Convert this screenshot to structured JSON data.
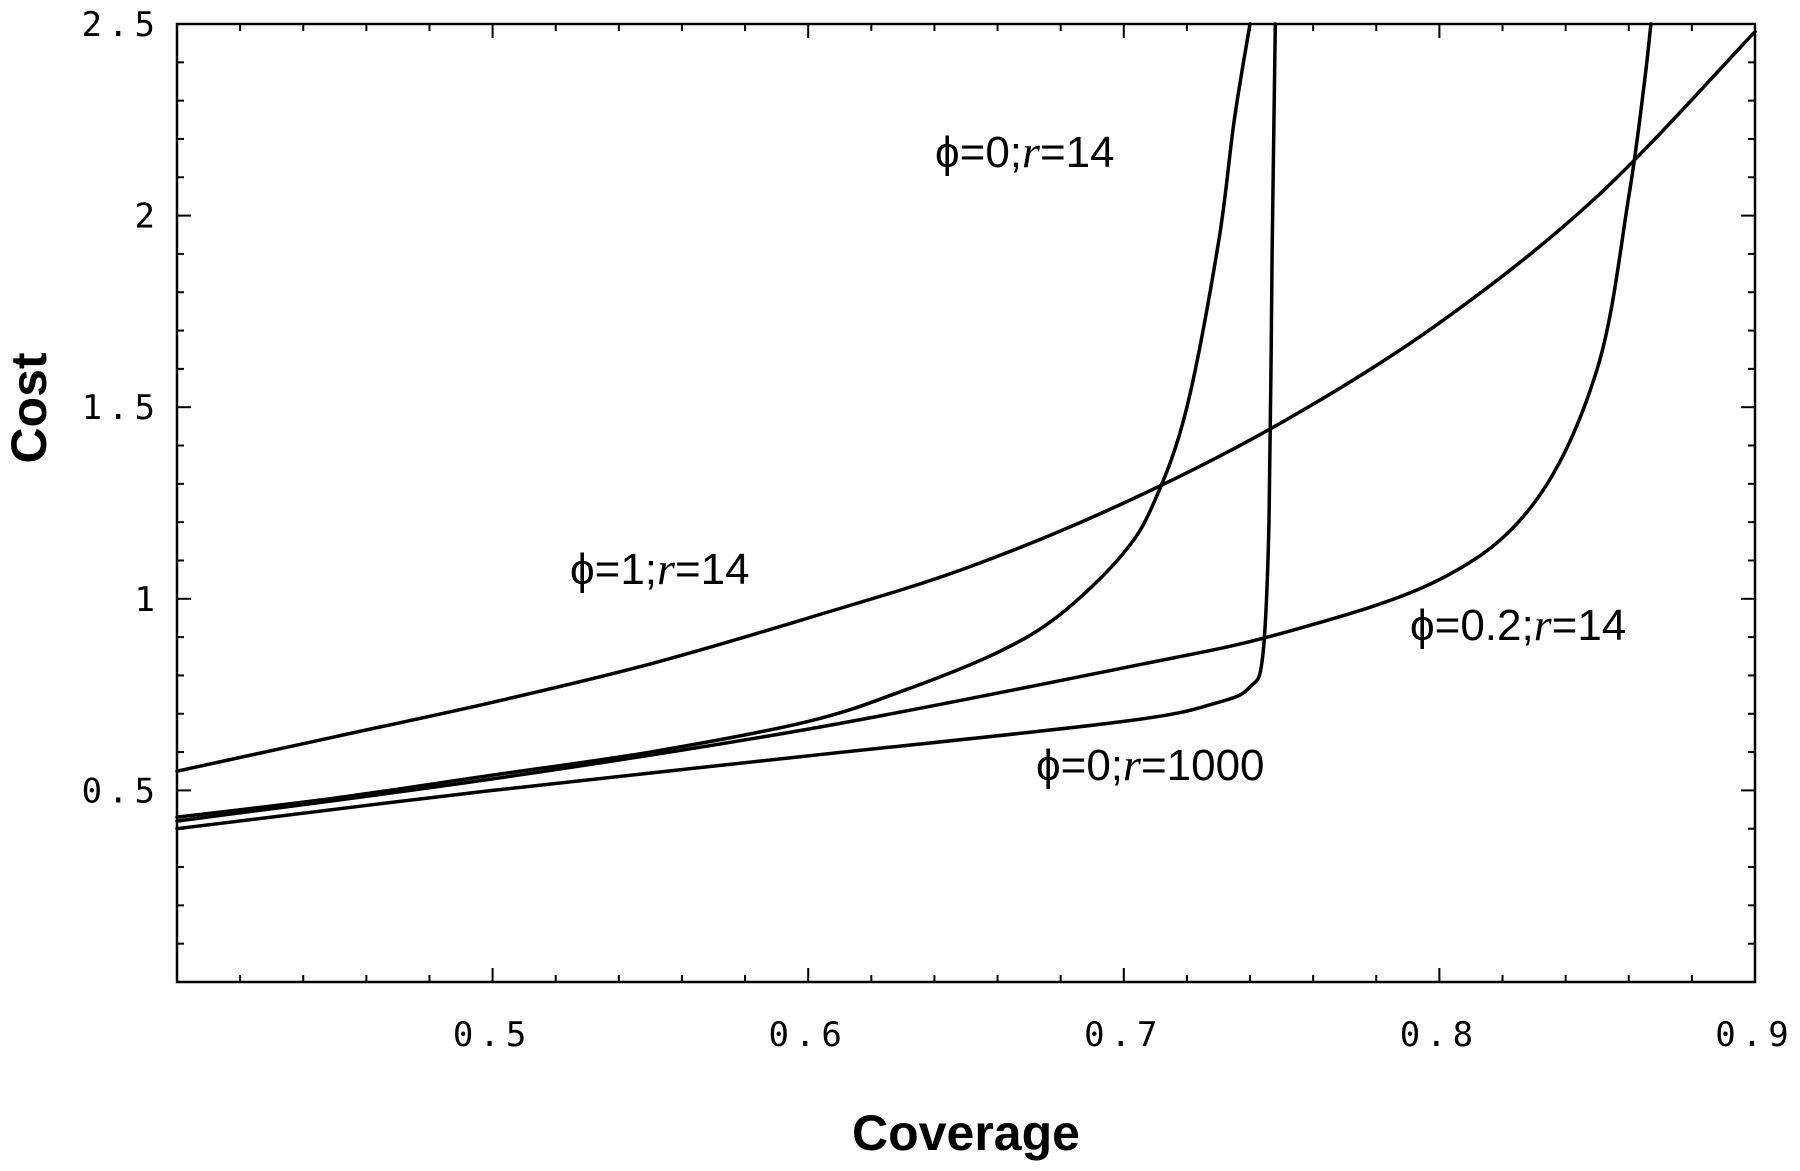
{
  "chart_data": {
    "type": "line",
    "title": "",
    "xlabel": "Coverage",
    "ylabel": "Cost",
    "xlim": [
      0.4,
      0.9
    ],
    "ylim": [
      0.0,
      2.5
    ],
    "grid": false,
    "legend": "none (labels placed next to curves)",
    "x_ticks": [
      0.5,
      0.6,
      0.7,
      0.8,
      0.9
    ],
    "x_tick_labels": [
      "0.5",
      "0.6",
      "0.7",
      "0.8",
      "0.9"
    ],
    "y_ticks": [
      0.5,
      1.0,
      1.5,
      2.0,
      2.5
    ],
    "y_tick_labels": [
      "0.5",
      "1",
      "1.5",
      "2",
      "2.5"
    ],
    "series": [
      {
        "name": "ϕ=1;r=14",
        "label_parts": [
          "ϕ=1;",
          "r",
          "=14"
        ],
        "x": [
          0.4,
          0.45,
          0.5,
          0.55,
          0.6,
          0.65,
          0.7,
          0.75,
          0.8,
          0.85,
          0.9
        ],
        "y": [
          0.55,
          0.64,
          0.73,
          0.83,
          0.95,
          1.08,
          1.25,
          1.46,
          1.72,
          2.05,
          2.48
        ]
      },
      {
        "name": "ϕ=0;r=14",
        "label_parts": [
          "ϕ=0;",
          "r",
          "=14"
        ],
        "x": [
          0.4,
          0.45,
          0.5,
          0.55,
          0.6,
          0.63,
          0.66,
          0.68,
          0.7,
          0.71,
          0.72,
          0.73,
          0.735,
          0.74
        ],
        "y": [
          0.43,
          0.48,
          0.54,
          0.6,
          0.68,
          0.76,
          0.86,
          0.96,
          1.12,
          1.26,
          1.5,
          1.93,
          2.25,
          2.5
        ]
      },
      {
        "name": "ϕ=0;r=1000",
        "label_parts": [
          "ϕ=0;",
          "r",
          "=1000"
        ],
        "x": [
          0.4,
          0.5,
          0.6,
          0.7,
          0.73,
          0.74,
          0.744,
          0.746,
          0.747,
          0.748
        ],
        "y": [
          0.4,
          0.5,
          0.59,
          0.68,
          0.73,
          0.77,
          0.85,
          1.2,
          1.9,
          2.5
        ]
      },
      {
        "name": "ϕ=0.2;r=14",
        "label_parts": [
          "ϕ=0.2;",
          "r",
          "=14"
        ],
        "x": [
          0.4,
          0.5,
          0.6,
          0.7,
          0.75,
          0.8,
          0.83,
          0.85,
          0.86,
          0.865,
          0.867
        ],
        "y": [
          0.42,
          0.53,
          0.66,
          0.82,
          0.91,
          1.05,
          1.25,
          1.6,
          2.05,
          2.35,
          2.5
        ]
      }
    ]
  }
}
